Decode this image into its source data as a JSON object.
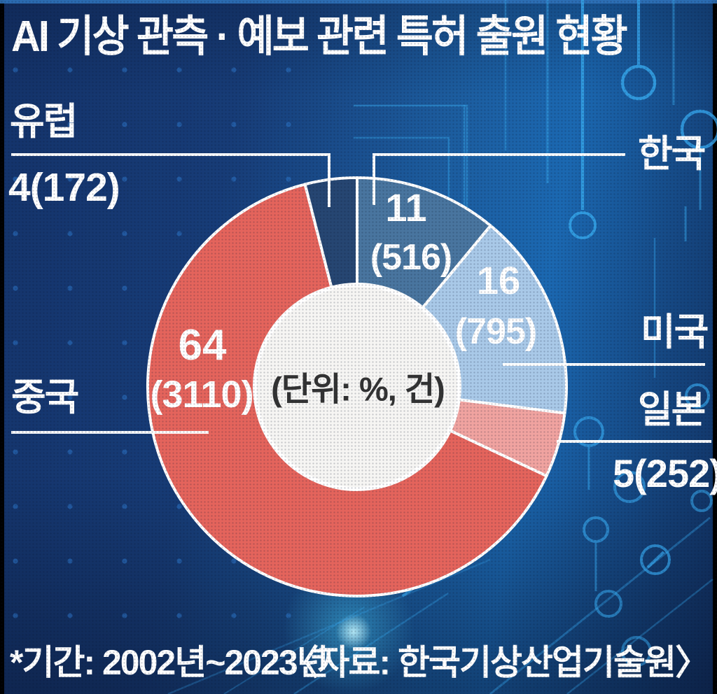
{
  "title": "AI 기상 관측 · 예보 관련 특허 출원 현황",
  "center_note": "(단위: %, 건)",
  "footer": {
    "period": "*기간: 2002년~2023년",
    "source": "〈자료: 한국기상산업기술원〉"
  },
  "chart_data": {
    "type": "pie",
    "subtype": "donut",
    "title": "AI 기상 관측 · 예보 관련 특허 출원 현황",
    "unit_note": "(단위: %, 건)",
    "period_note": "*기간: 2002년~2023년",
    "source_note": "〈자료: 한국기상산업기술원〉",
    "start_angle": "top",
    "direction": "clockwise",
    "categories": [
      "한국",
      "미국",
      "일본",
      "중국",
      "유럽"
    ],
    "values_percent": [
      11,
      16,
      5,
      64,
      4
    ],
    "values_count": [
      516,
      795,
      252,
      3110,
      172
    ],
    "segments": [
      {
        "key": "korea",
        "name": "한국",
        "percent": 11,
        "count": 516,
        "percent_label": "11",
        "count_label": "(516)",
        "color": "#49759f"
      },
      {
        "key": "usa",
        "name": "미국",
        "percent": 16,
        "count": 795,
        "percent_label": "16",
        "count_label": "(795)",
        "color": "#a9c9e8"
      },
      {
        "key": "japan",
        "name": "일본",
        "percent": 5,
        "count": 252,
        "outside_value_label": "5(252)",
        "color": "#f0a3a0"
      },
      {
        "key": "china",
        "name": "중국",
        "percent": 64,
        "count": 3110,
        "percent_label": "64",
        "count_label": "(3110)",
        "color": "#e4645c"
      },
      {
        "key": "europe",
        "name": "유럽",
        "percent": 4,
        "count": 172,
        "outside_value_label": "4(172)",
        "color": "#264672"
      }
    ],
    "donut_hole_fill": "#f6f5f3",
    "divider_color": "#ffffff"
  }
}
